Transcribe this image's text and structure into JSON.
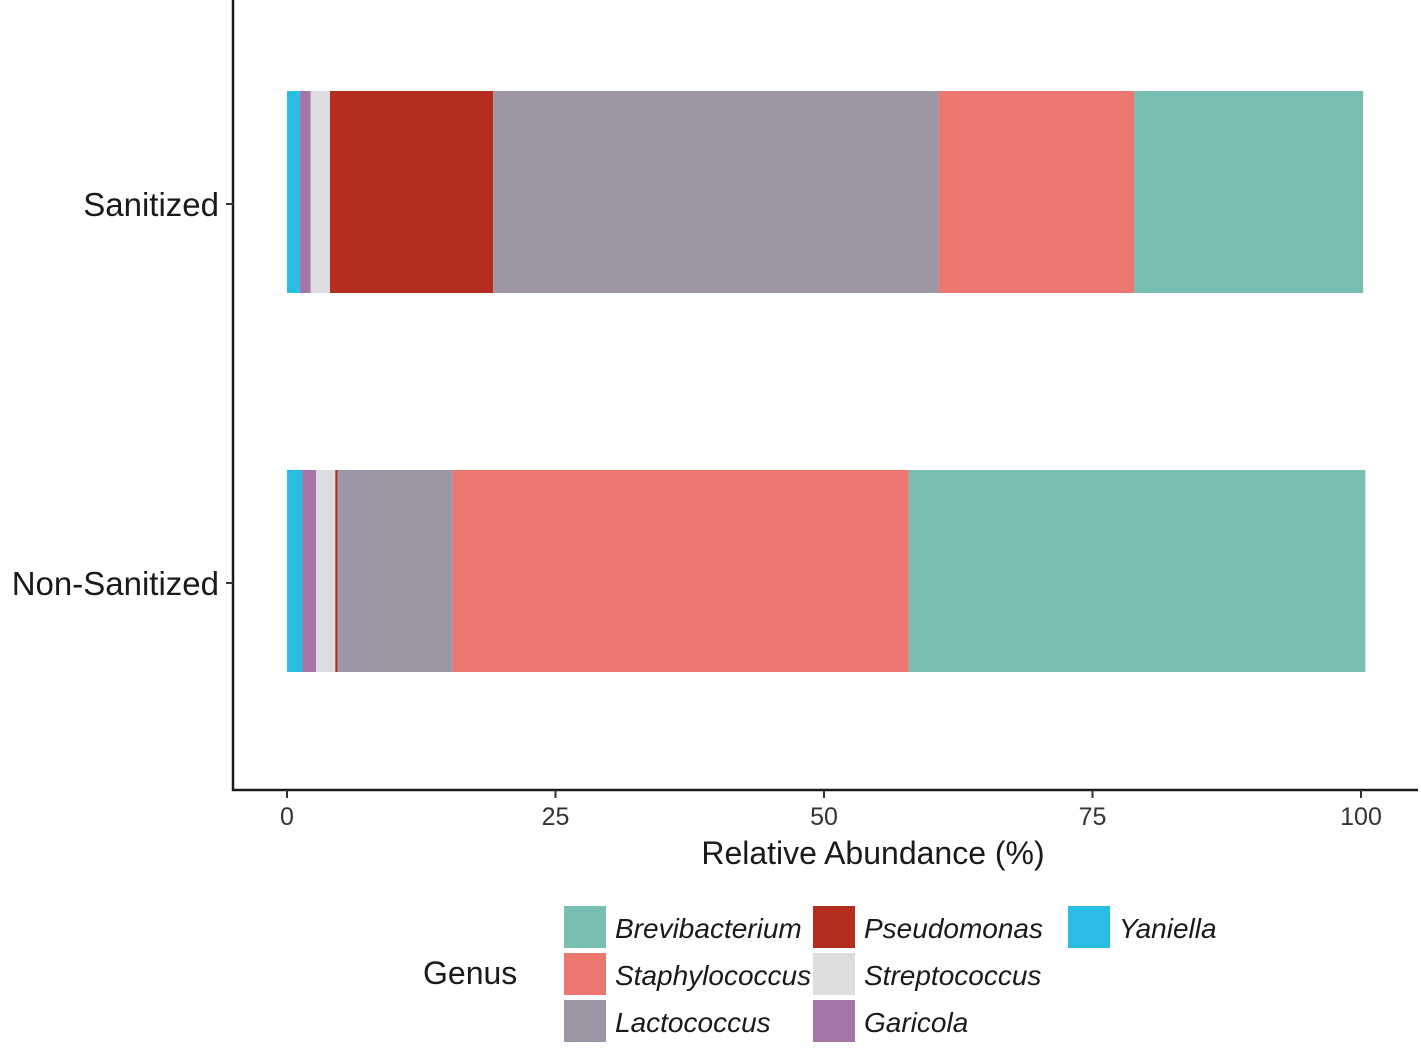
{
  "chart_data": {
    "type": "bar",
    "orientation": "horizontal",
    "stacked": true,
    "categories": [
      "Sanitized",
      "Non-Sanitized"
    ],
    "series": [
      {
        "name": "Yaniella",
        "color": "#29BDE3",
        "values": [
          1.2,
          1.4
        ]
      },
      {
        "name": "Garicola",
        "color": "#A675A8",
        "values": [
          1.0,
          1.3
        ]
      },
      {
        "name": "Streptococcus",
        "color": "#DDDDE0",
        "values": [
          1.8,
          1.8
        ]
      },
      {
        "name": "Pseudomonas",
        "color": "#B52D1E",
        "values": [
          15.2,
          0.2
        ]
      },
      {
        "name": "Lactococcus",
        "color": "#9E95A7",
        "values": [
          41.5,
          10.7
        ]
      },
      {
        "name": "Staphylococcus",
        "color": "#EC776E",
        "values": [
          18.2,
          42.5
        ]
      },
      {
        "name": "Brevibacterium",
        "color": "#78BFB3",
        "values": [
          21.3,
          42.5
        ]
      }
    ],
    "xlabel": "Relative Abundance (%)",
    "ylabel": "",
    "xlim": [
      -5,
      106
    ],
    "xticks": [
      0,
      25,
      50,
      75,
      100
    ],
    "xtick_labels": [
      "0",
      "25",
      "50",
      "75",
      "100"
    ],
    "grid": false,
    "legend": {
      "title": "Genus",
      "position": "bottom",
      "columns": [
        [
          "Brevibacterium",
          "Staphylococcus",
          "Lactococcus"
        ],
        [
          "Pseudomonas",
          "Streptococcus",
          "Garicola"
        ],
        [
          "Yaniella"
        ]
      ]
    }
  }
}
